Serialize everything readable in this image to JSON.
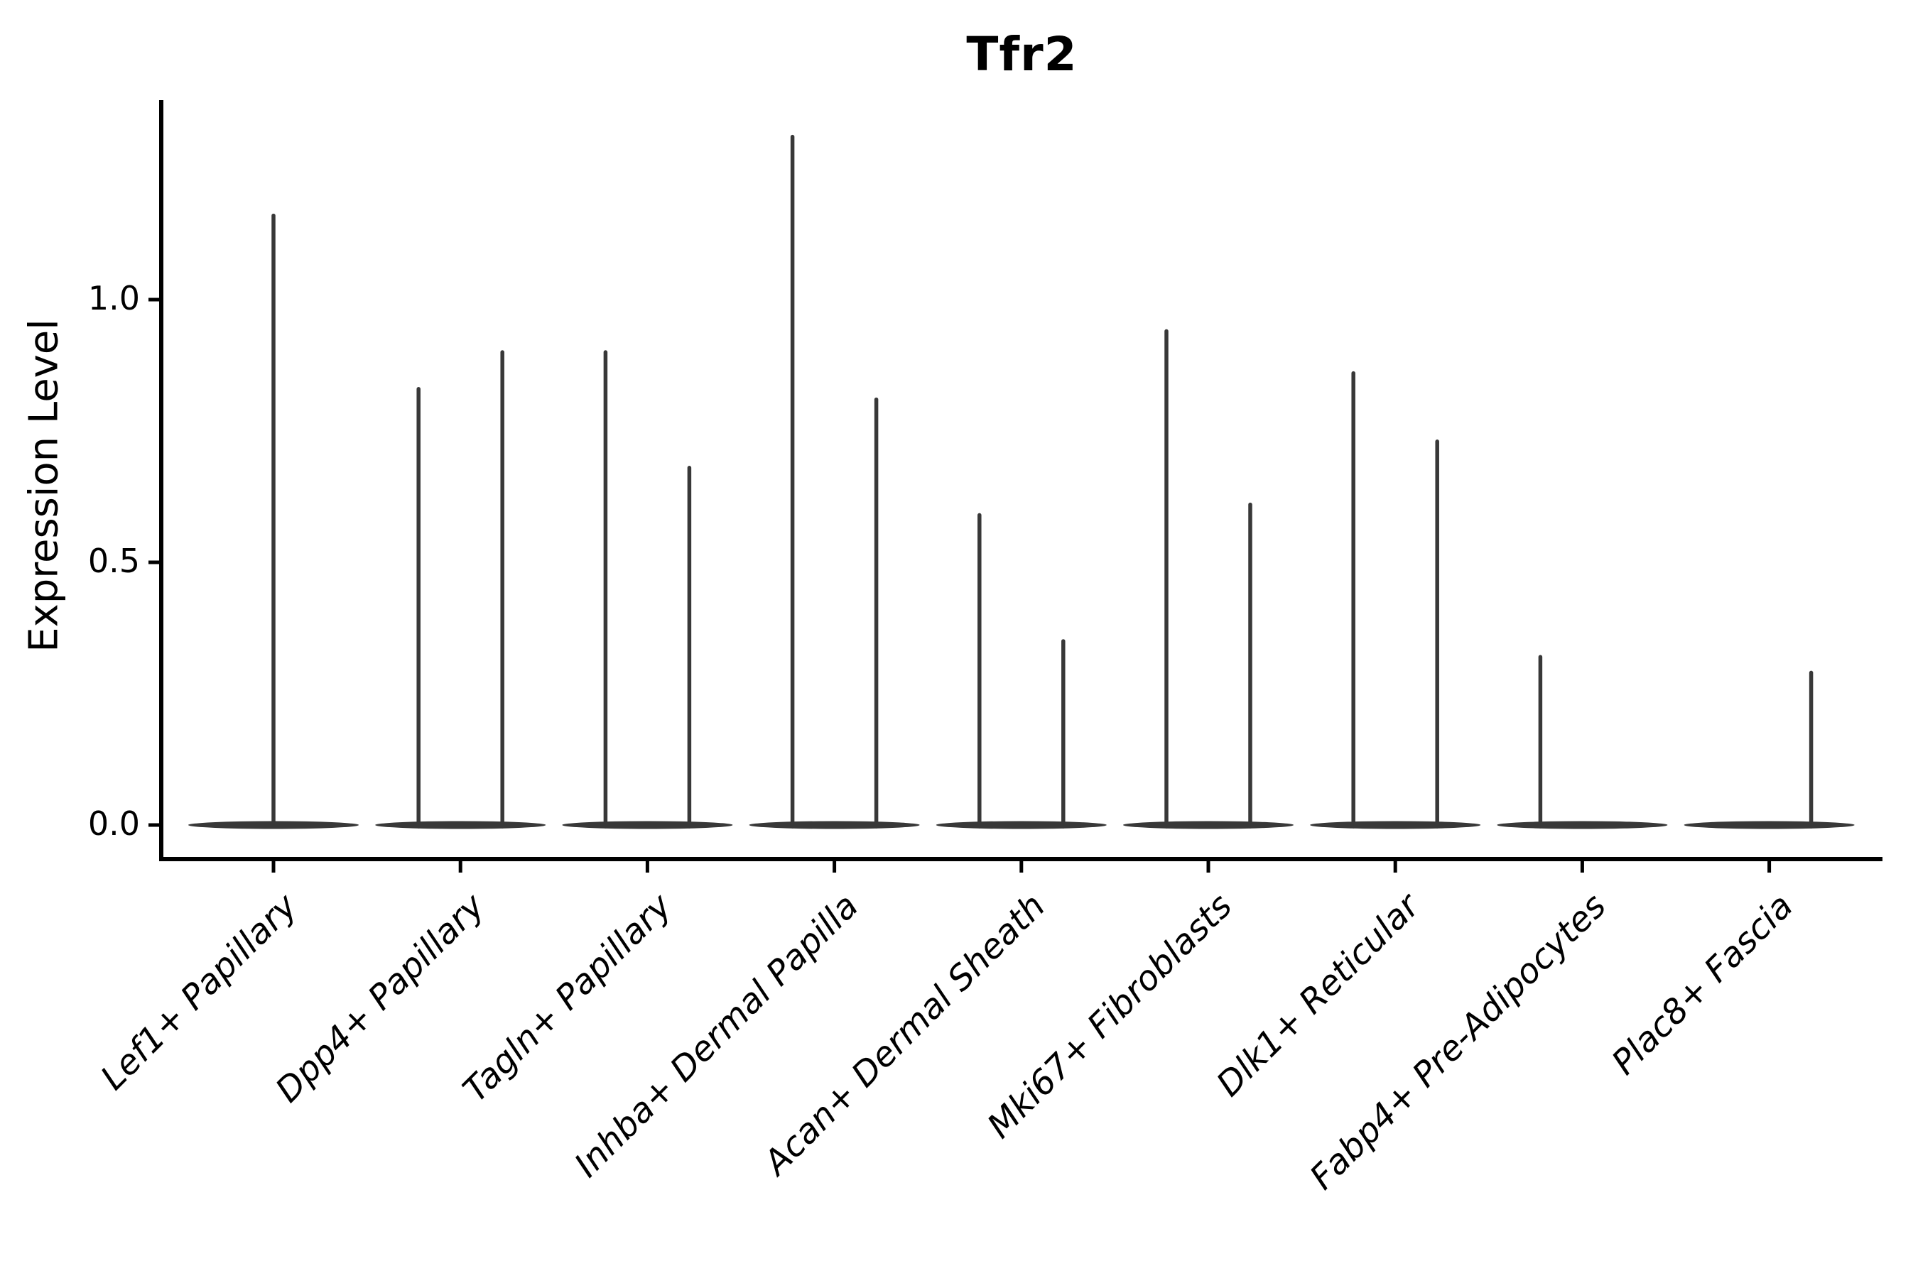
{
  "title": "Tfr2",
  "axis": {
    "ylabel": "Expression Level",
    "y_ticks": [
      {
        "label": "1.0",
        "value": 1.0
      },
      {
        "label": "0.5",
        "value": 0.5
      },
      {
        "label": "0.0",
        "value": 0.0
      }
    ]
  },
  "chart_data": {
    "type": "violin",
    "title": "Tfr2",
    "xlabel": "",
    "ylabel": "Expression Level",
    "ylim": [
      0,
      1.38
    ],
    "yticks": [
      0.0,
      0.5,
      1.0
    ],
    "grid": false,
    "legend": "none",
    "description": "Needle-like violin plot of Tfr2 expression; each category shows a flat density blob at 0 and thin vertical spikes reaching the maximum expression value. Most categories contain two half-width violins (left/right); Lef1+ Papillary has a single centered violin.",
    "categories": [
      "Lef1+ Papillary",
      "Dpp4+ Papillary",
      "Tagln+ Papillary",
      "Inhba+ Dermal Papilla",
      "Acan+ Dermal Sheath",
      "Mki67+ Fibroblasts",
      "Dlk1+ Reticular",
      "Fabp4+ Pre-Adipocytes",
      "Plac8+ Fascia"
    ],
    "baseline_value": 0.0,
    "violins": [
      {
        "category": "Lef1+ Papillary",
        "spikes": [
          {
            "position": "center",
            "max": 1.16
          }
        ]
      },
      {
        "category": "Dpp4+ Papillary",
        "spikes": [
          {
            "position": "left",
            "max": 0.83
          },
          {
            "position": "right",
            "max": 0.9
          }
        ]
      },
      {
        "category": "Tagln+ Papillary",
        "spikes": [
          {
            "position": "left",
            "max": 0.9
          },
          {
            "position": "right",
            "max": 0.68
          }
        ]
      },
      {
        "category": "Inhba+ Dermal Papilla",
        "spikes": [
          {
            "position": "left",
            "max": 1.31
          },
          {
            "position": "right",
            "max": 0.81
          }
        ]
      },
      {
        "category": "Acan+ Dermal Sheath",
        "spikes": [
          {
            "position": "left",
            "max": 0.59
          },
          {
            "position": "right",
            "max": 0.35
          }
        ]
      },
      {
        "category": "Mki67+ Fibroblasts",
        "spikes": [
          {
            "position": "left",
            "max": 0.94
          },
          {
            "position": "right",
            "max": 0.61
          }
        ]
      },
      {
        "category": "Dlk1+ Reticular",
        "spikes": [
          {
            "position": "left",
            "max": 0.86
          },
          {
            "position": "right",
            "max": 0.73
          }
        ]
      },
      {
        "category": "Fabp4+ Pre-Adipocytes",
        "spikes": [
          {
            "position": "left",
            "max": 0.32
          }
        ]
      },
      {
        "category": "Plac8+ Fascia",
        "spikes": [
          {
            "position": "right",
            "max": 0.29
          }
        ]
      }
    ],
    "colors": {
      "violin": "#383838",
      "axis": "#000000",
      "text": "#000000"
    }
  }
}
